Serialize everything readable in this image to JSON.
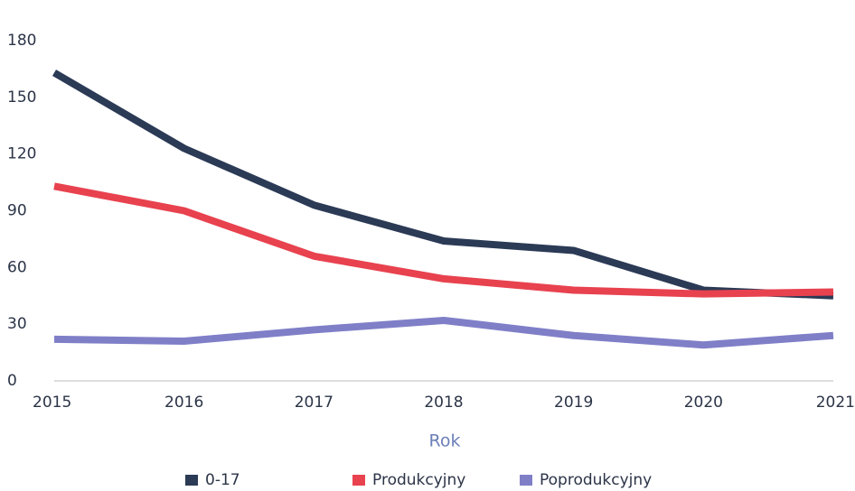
{
  "chart_data": {
    "type": "line",
    "x": [
      2015,
      2016,
      2017,
      2018,
      2019,
      2020,
      2021
    ],
    "xlim": [
      2015,
      2021
    ],
    "xticks": [
      2015,
      2016,
      2017,
      2018,
      2019,
      2020,
      2021
    ],
    "ylim": [
      0,
      180
    ],
    "yticks": [
      0,
      30,
      60,
      90,
      120,
      150,
      180
    ],
    "x_label": "Rok",
    "grid": false,
    "series": [
      {
        "name": "0-17",
        "color": "#2b3a55",
        "values": [
          163,
          123,
          93,
          74,
          69,
          48,
          45
        ]
      },
      {
        "name": "Produkcyjny",
        "color": "#e8424f",
        "values": [
          103,
          90,
          66,
          54,
          48,
          46,
          47
        ]
      },
      {
        "name": "Poprodukcyjny",
        "color": "#7f7fc8",
        "values": [
          22,
          21,
          27,
          32,
          24,
          19,
          24
        ]
      }
    ]
  }
}
